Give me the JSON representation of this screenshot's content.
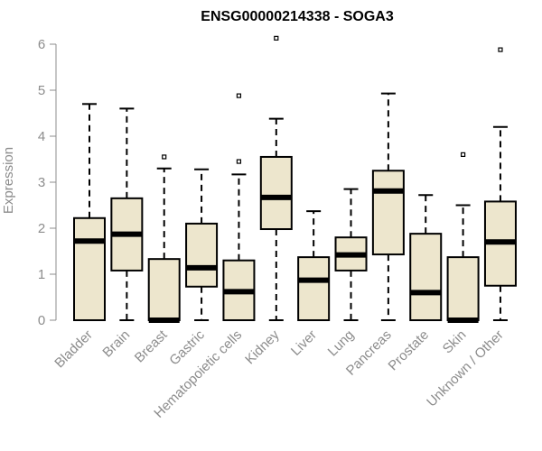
{
  "chart_data": {
    "type": "boxplot",
    "title": "ENSG00000214338 - SOGA3",
    "ylabel": "Expression",
    "ylim": [
      0,
      6
    ],
    "yticks": [
      0,
      1,
      2,
      3,
      4,
      5,
      6
    ],
    "box_fill": "#ede6cd",
    "categories": [
      "Bladder",
      "Brain",
      "Breast",
      "Gastric",
      "Hematopoietic cells",
      "Kidney",
      "Liver",
      "Lung",
      "Pancreas",
      "Prostate",
      "Skin",
      "Unknown / Other"
    ],
    "boxes": [
      {
        "category": "Bladder",
        "min": 0,
        "q1": 0,
        "median": 1.72,
        "q3": 2.22,
        "max": 4.7,
        "outliers": []
      },
      {
        "category": "Brain",
        "min": 0,
        "q1": 1.08,
        "median": 1.87,
        "q3": 2.65,
        "max": 4.6,
        "outliers": []
      },
      {
        "category": "Breast",
        "min": 0,
        "q1": 0,
        "median": 0,
        "q3": 1.33,
        "max": 3.3,
        "outliers": [
          3.55
        ]
      },
      {
        "category": "Gastric",
        "min": 0,
        "q1": 0.73,
        "median": 1.14,
        "q3": 2.1,
        "max": 3.28,
        "outliers": []
      },
      {
        "category": "Hematopoietic cells",
        "min": 0,
        "q1": 0,
        "median": 0.62,
        "q3": 1.3,
        "max": 3.17,
        "outliers": [
          3.45,
          4.88
        ]
      },
      {
        "category": "Kidney",
        "min": 0,
        "q1": 1.98,
        "median": 2.67,
        "q3": 3.55,
        "max": 4.38,
        "outliers": [
          6.13
        ]
      },
      {
        "category": "Liver",
        "min": 0,
        "q1": 0,
        "median": 0.87,
        "q3": 1.37,
        "max": 2.37,
        "outliers": []
      },
      {
        "category": "Lung",
        "min": 0,
        "q1": 1.08,
        "median": 1.42,
        "q3": 1.8,
        "max": 2.85,
        "outliers": []
      },
      {
        "category": "Pancreas",
        "min": 0,
        "q1": 1.43,
        "median": 2.81,
        "q3": 3.25,
        "max": 4.93,
        "outliers": []
      },
      {
        "category": "Prostate",
        "min": 0,
        "q1": 0,
        "median": 0.6,
        "q3": 1.88,
        "max": 2.72,
        "outliers": []
      },
      {
        "category": "Skin",
        "min": 0,
        "q1": 0,
        "median": 0,
        "q3": 1.37,
        "max": 2.5,
        "outliers": [
          3.6
        ]
      },
      {
        "category": "Unknown / Other",
        "min": 0,
        "q1": 0.75,
        "median": 1.7,
        "q3": 2.58,
        "max": 4.2,
        "outliers": [
          5.88
        ]
      }
    ]
  }
}
